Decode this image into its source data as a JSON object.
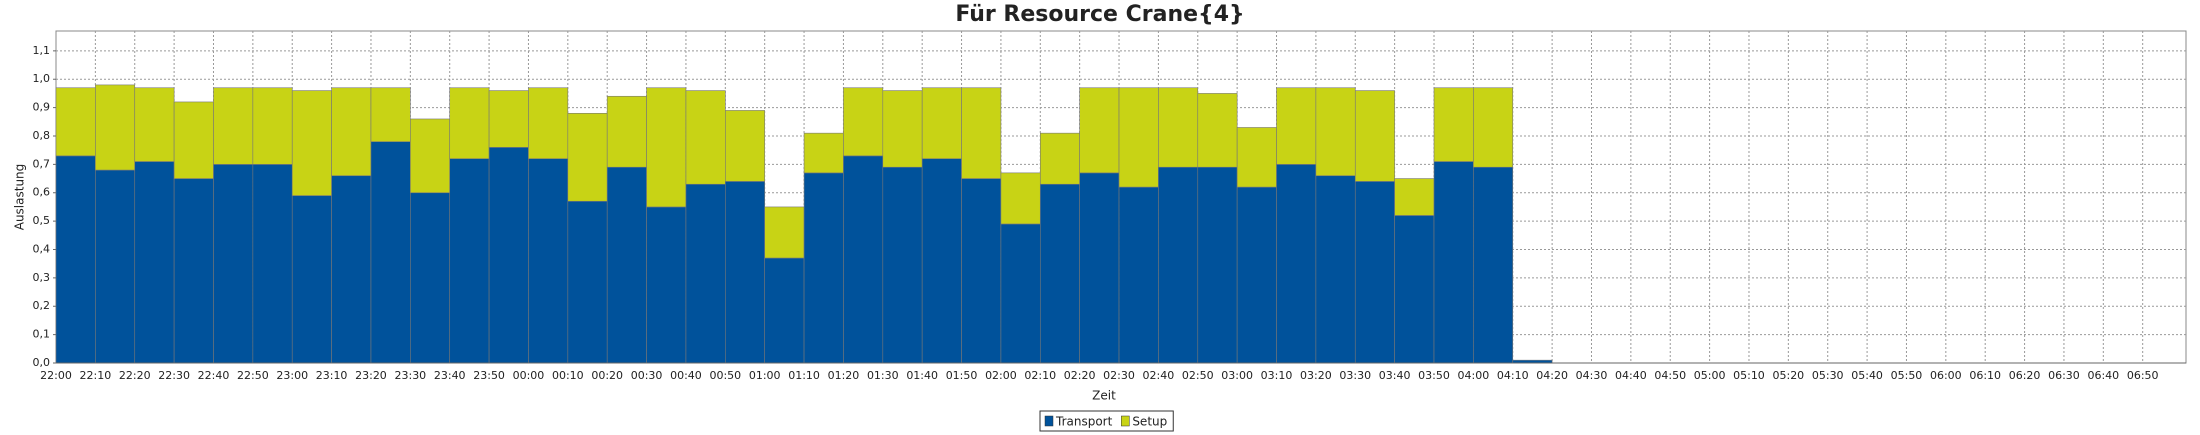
{
  "chart_data": {
    "type": "bar",
    "stacked": true,
    "title": "Für Resource Crane{4}",
    "x_label": "Zeit",
    "y_label": "Auslastung",
    "categories": [
      "22:00",
      "22:10",
      "22:20",
      "22:30",
      "22:40",
      "22:50",
      "23:00",
      "23:10",
      "23:20",
      "23:30",
      "23:40",
      "23:50",
      "00:00",
      "00:10",
      "00:20",
      "00:30",
      "00:40",
      "00:50",
      "01:00",
      "01:10",
      "01:20",
      "01:30",
      "01:40",
      "01:50",
      "02:00",
      "02:10",
      "02:20",
      "02:30",
      "02:40",
      "02:50",
      "03:00",
      "03:10",
      "03:20",
      "03:30",
      "03:40",
      "03:50",
      "04:00",
      "04:10",
      "04:20",
      "04:30",
      "04:40",
      "04:50",
      "05:00",
      "05:10",
      "05:20",
      "05:30",
      "05:40",
      "05:50",
      "06:00",
      "06:10",
      "06:20",
      "06:30",
      "06:40",
      "06:50"
    ],
    "series": [
      {
        "name": "Transport",
        "color": "#00529b",
        "values": [
          0.73,
          0.68,
          0.71,
          0.65,
          0.7,
          0.7,
          0.59,
          0.66,
          0.78,
          0.6,
          0.72,
          0.76,
          0.72,
          0.57,
          0.69,
          0.55,
          0.63,
          0.64,
          0.37,
          0.67,
          0.73,
          0.69,
          0.72,
          0.65,
          0.49,
          0.63,
          0.67,
          0.62,
          0.69,
          0.69,
          0.62,
          0.7,
          0.66,
          0.64,
          0.52,
          0.71,
          0.69,
          0.01,
          null,
          null,
          null,
          null,
          null,
          null,
          null,
          null,
          null,
          null,
          null,
          null,
          null,
          null,
          null,
          null
        ]
      },
      {
        "name": "Setup",
        "color": "#c8d315",
        "values": [
          0.24,
          0.3,
          0.26,
          0.27,
          0.27,
          0.27,
          0.37,
          0.31,
          0.19,
          0.26,
          0.25,
          0.2,
          0.25,
          0.31,
          0.25,
          0.42,
          0.33,
          0.25,
          0.18,
          0.14,
          0.24,
          0.27,
          0.25,
          0.32,
          0.18,
          0.18,
          0.3,
          0.35,
          0.28,
          0.26,
          0.21,
          0.27,
          0.31,
          0.32,
          0.13,
          0.26,
          0.28,
          0,
          null,
          null,
          null,
          null,
          null,
          null,
          null,
          null,
          null,
          null,
          null,
          null,
          null,
          null,
          null,
          null
        ]
      }
    ],
    "ylim": [
      0,
      1.17
    ],
    "yticks": [
      {
        "value": 0,
        "label": "0,0"
      },
      {
        "value": 0.1,
        "label": "0,1"
      },
      {
        "value": 0.2,
        "label": "0,2"
      },
      {
        "value": 0.3,
        "label": "0,3"
      },
      {
        "value": 0.4,
        "label": "0,4"
      },
      {
        "value": 0.5,
        "label": "0,5"
      },
      {
        "value": 0.6,
        "label": "0,6"
      },
      {
        "value": 0.7,
        "label": "0,7"
      },
      {
        "value": 0.8,
        "label": "0,8"
      },
      {
        "value": 0.9,
        "label": "0,9"
      },
      {
        "value": 1.0,
        "label": "1,0"
      },
      {
        "value": 1.1,
        "label": "1,1"
      }
    ],
    "grid": true,
    "legend": "bottom"
  }
}
